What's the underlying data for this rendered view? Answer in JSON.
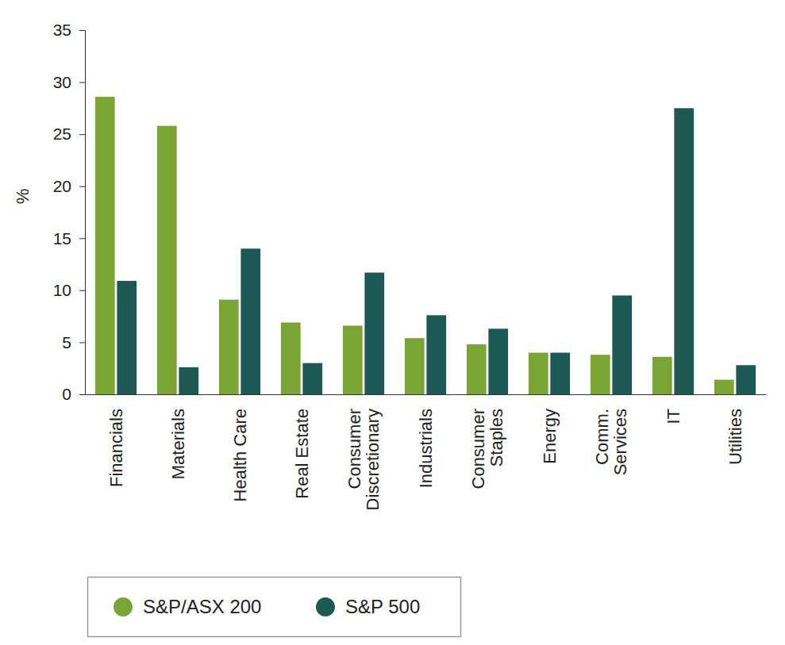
{
  "chart_data": {
    "type": "bar",
    "y_label": "%",
    "categories": [
      "Financials",
      "Materials",
      "Health Care",
      "Real Estate",
      "Consumer\nDiscretionary",
      "Industrials",
      "Consumer\nStaples",
      "Energy",
      "Comm.\nServices",
      "IT",
      "Utilities"
    ],
    "series": [
      {
        "name": "S&P/ASX 200",
        "color": "#7aa535",
        "values": [
          28.6,
          25.8,
          9.1,
          6.9,
          6.6,
          5.4,
          4.8,
          4.0,
          3.8,
          3.6,
          1.4
        ]
      },
      {
        "name": "S&P 500",
        "color": "#1d5855",
        "values": [
          10.9,
          2.6,
          14.0,
          3.0,
          11.7,
          7.6,
          6.3,
          4.0,
          9.5,
          27.5,
          2.8
        ]
      }
    ],
    "ylim": [
      0,
      35
    ],
    "yticks": [
      0,
      5,
      10,
      15,
      20,
      25,
      30,
      35
    ],
    "grid": false,
    "legend": "bottom-left"
  }
}
